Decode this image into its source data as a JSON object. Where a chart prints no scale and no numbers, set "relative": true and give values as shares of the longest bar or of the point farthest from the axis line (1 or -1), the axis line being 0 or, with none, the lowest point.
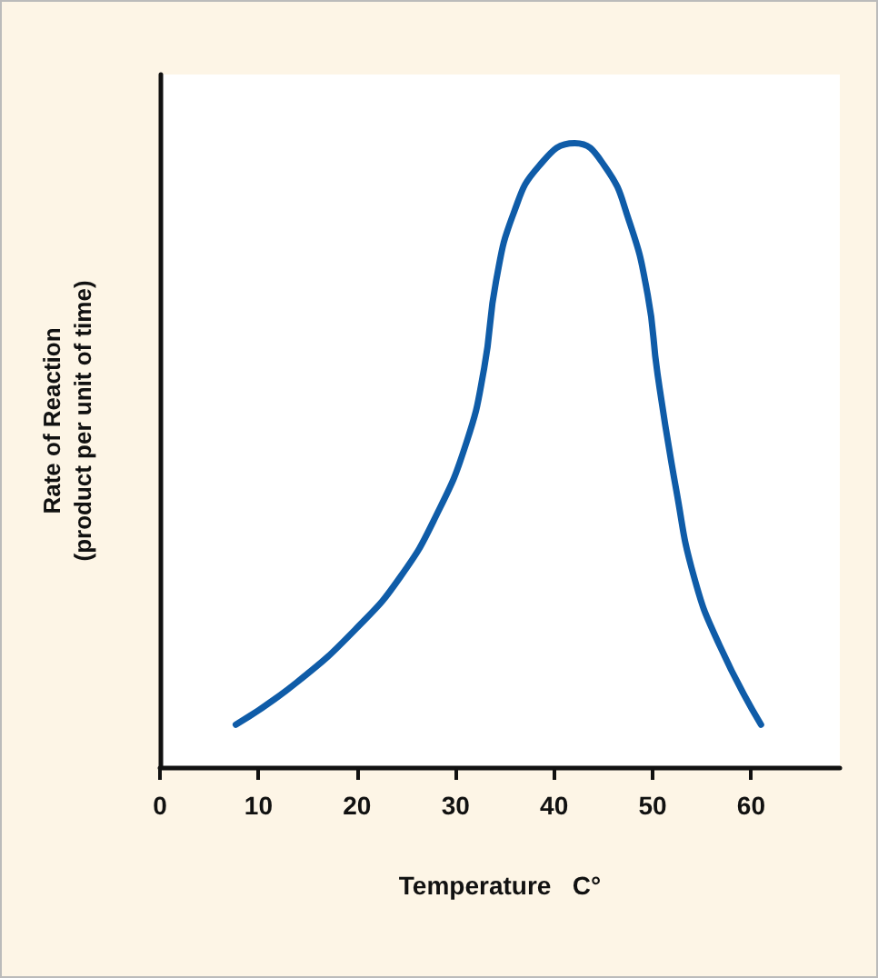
{
  "chart_data": {
    "type": "line",
    "relative": true,
    "xlabel": "Temperature   C°",
    "ylabel": "Rate of Reaction\n(product per unit of time)",
    "xlim": [
      0,
      69
    ],
    "xticks": [
      0,
      10,
      20,
      30,
      40,
      50,
      60
    ],
    "marker": "none",
    "grid": false,
    "series": [
      {
        "color": "#0f5ca8",
        "x": [
          7.7,
          13.9,
          20.1,
          24.4,
          28.0,
          31.1,
          32.9,
          34.1,
          35.9,
          38.5,
          42.1,
          45.1,
          47.6,
          49.5,
          50.5,
          52.4,
          54.2,
          56.8,
          61.0
        ],
        "values": [
          0.068,
          0.136,
          0.225,
          0.305,
          0.402,
          0.52,
          0.639,
          0.778,
          0.888,
          0.964,
          1,
          0.964,
          0.876,
          0.757,
          0.63,
          0.444,
          0.305,
          0.195,
          0.068
        ]
      }
    ]
  }
}
